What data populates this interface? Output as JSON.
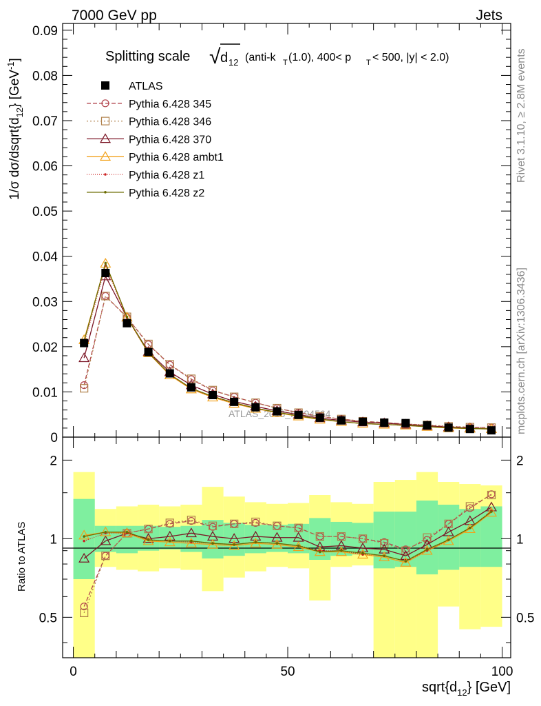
{
  "header": {
    "left": "7000 GeV pp",
    "right": "Jets",
    "side_top": "Rivet 3.1.10, ≥ 2.8M events",
    "side_bottom": "mcplots.cern.ch [arXiv:1306.3436]",
    "watermark": "ATLAS_2013_I1094564"
  },
  "title": {
    "main": "Splitting scale",
    "sqrt_symbol": "√",
    "var_base": "d",
    "var_sub": "12",
    "cond_1": "(anti-k",
    "cond_1_sub": "T",
    "cond_2": "(1.0), 400< p",
    "cond_2_sub": "T",
    "cond_3": "< 500, |y| < 2.0)"
  },
  "axes": {
    "ylabel_main": "1/σ dσ/dsqrt{d",
    "ylabel_main_sub": "12",
    "ylabel_main_end": "} [GeV",
    "ylabel_main_sup": "-1",
    "ylabel_main_close": "]",
    "ylabel_ratio": "Ratio to ATLAS",
    "xlabel": "sqrt{d",
    "xlabel_sub": "12",
    "xlabel_end": "} [GeV]"
  },
  "chart_data": {
    "type": "line",
    "x": [
      2.5,
      7.5,
      12.5,
      17.5,
      22.5,
      27.5,
      32.5,
      37.5,
      42.5,
      47.5,
      52.5,
      57.5,
      62.5,
      67.5,
      72.5,
      77.5,
      82.5,
      87.5,
      92.5,
      97.5
    ],
    "bin_edges": [
      0,
      5,
      10,
      15,
      20,
      25,
      30,
      35,
      40,
      45,
      50,
      55,
      60,
      65,
      70,
      75,
      80,
      85,
      90,
      95,
      100
    ],
    "xlim": [
      -2.5,
      102
    ],
    "ylim_main": [
      0,
      0.0915
    ],
    "ylim_ratio": [
      0.35,
      2.45
    ],
    "ratio_log_scale": true,
    "xticks": [
      0,
      50,
      100
    ],
    "yticks_main": [
      "0",
      "0.01",
      "0.02",
      "0.03",
      "0.04",
      "0.05",
      "0.06",
      "0.07",
      "0.08",
      "0.09"
    ],
    "yticks_ratio": [
      "0.5",
      "1",
      "2"
    ],
    "data": {
      "name": "ATLAS",
      "values": [
        0.0208,
        0.0363,
        0.0252,
        0.0188,
        0.0141,
        0.011,
        0.0093,
        0.0078,
        0.0066,
        0.0057,
        0.0049,
        0.0043,
        0.0037,
        0.0034,
        0.0032,
        0.0031,
        0.0026,
        0.0021,
        0.0018,
        0.0015
      ],
      "color": "#000000"
    },
    "band_inner": [
      [
        0.7,
        1.42
      ],
      [
        0.89,
        1.12
      ],
      [
        0.88,
        1.12
      ],
      [
        0.9,
        1.12
      ],
      [
        0.91,
        1.11
      ],
      [
        0.89,
        1.12
      ],
      [
        0.84,
        1.18
      ],
      [
        0.86,
        1.15
      ],
      [
        0.88,
        1.13
      ],
      [
        0.89,
        1.13
      ],
      [
        0.88,
        1.14
      ],
      [
        0.83,
        1.2
      ],
      [
        0.86,
        1.16
      ],
      [
        0.87,
        1.15
      ],
      [
        0.77,
        1.27
      ],
      [
        0.78,
        1.27
      ],
      [
        0.73,
        1.4
      ],
      [
        0.76,
        1.35
      ],
      [
        0.78,
        1.3
      ],
      [
        0.78,
        1.33
      ]
    ],
    "band_outer": [
      [
        0.35,
        1.8
      ],
      [
        0.78,
        1.3
      ],
      [
        0.76,
        1.33
      ],
      [
        0.75,
        1.35
      ],
      [
        0.77,
        1.33
      ],
      [
        0.76,
        1.35
      ],
      [
        0.63,
        1.58
      ],
      [
        0.71,
        1.45
      ],
      [
        0.75,
        1.38
      ],
      [
        0.78,
        1.36
      ],
      [
        0.77,
        1.37
      ],
      [
        0.58,
        1.47
      ],
      [
        0.78,
        1.38
      ],
      [
        0.79,
        1.36
      ],
      [
        0.35,
        1.65
      ],
      [
        0.35,
        1.68
      ],
      [
        0.35,
        1.8
      ],
      [
        0.55,
        1.65
      ],
      [
        0.45,
        1.62
      ],
      [
        0.46,
        1.6
      ]
    ],
    "band_colors": {
      "inner": "#7fef9f",
      "outer": "#ffff88"
    },
    "series": [
      {
        "name": "Pythia 6.428 345",
        "color": "#b2444d",
        "dash": "6,3",
        "marker": "circle-open",
        "values": [
          0.0115,
          0.0312,
          0.0265,
          0.0205,
          0.016,
          0.0128,
          0.0103,
          0.0089,
          0.0076,
          0.0064,
          0.0054,
          0.0046,
          0.004,
          0.0035,
          0.0032,
          0.0029,
          0.0026,
          0.0023,
          0.0022,
          0.0021
        ],
        "ratio": [
          0.55,
          0.86,
          1.05,
          1.09,
          1.14,
          1.17,
          1.11,
          1.14,
          1.15,
          1.12,
          1.1,
          1.02,
          1.02,
          1.0,
          0.97,
          0.91,
          0.99,
          1.14,
          1.31,
          1.48
        ]
      },
      {
        "name": "Pythia 6.428 346",
        "color": "#b0804a",
        "dash": "2,3",
        "marker": "square-open",
        "values": [
          0.0108,
          0.0312,
          0.0266,
          0.0206,
          0.0161,
          0.0129,
          0.0104,
          0.0089,
          0.0076,
          0.0064,
          0.0054,
          0.0046,
          0.004,
          0.0035,
          0.0032,
          0.0029,
          0.0027,
          0.0024,
          0.0022,
          0.0021
        ],
        "ratio": [
          0.52,
          0.86,
          1.05,
          1.09,
          1.15,
          1.18,
          1.12,
          1.14,
          1.16,
          1.12,
          1.1,
          1.02,
          1.02,
          1.0,
          0.96,
          0.9,
          1.01,
          1.14,
          1.33,
          1.47
        ]
      },
      {
        "name": "Pythia 6.428 370",
        "color": "#7a1424",
        "dash": "",
        "marker": "triangle-open",
        "values": [
          0.0175,
          0.0356,
          0.0265,
          0.0189,
          0.0144,
          0.0115,
          0.0095,
          0.0079,
          0.0068,
          0.0058,
          0.005,
          0.0042,
          0.0037,
          0.0033,
          0.0031,
          0.0028,
          0.0025,
          0.0022,
          0.002,
          0.0018
        ],
        "ratio": [
          0.84,
          0.98,
          1.05,
          1.0,
          1.02,
          1.05,
          1.02,
          1.0,
          1.02,
          1.01,
          1.01,
          0.93,
          0.94,
          0.92,
          0.91,
          0.86,
          0.95,
          1.06,
          1.17,
          1.32
        ]
      },
      {
        "name": "Pythia 6.428 ambt1",
        "color": "#f2a11a",
        "dash": "",
        "marker": "triangle-open",
        "values": [
          0.0215,
          0.0384,
          0.0265,
          0.0186,
          0.0137,
          0.0106,
          0.0088,
          0.0074,
          0.0063,
          0.0054,
          0.0046,
          0.0039,
          0.0034,
          0.003,
          0.0028,
          0.0026,
          0.0023,
          0.002,
          0.0019,
          0.0018
        ],
        "ratio": [
          1.03,
          1.06,
          1.05,
          0.98,
          0.97,
          0.96,
          0.95,
          0.94,
          0.96,
          0.95,
          0.93,
          0.89,
          0.89,
          0.87,
          0.85,
          0.81,
          0.9,
          0.98,
          1.09,
          1.26
        ]
      },
      {
        "name": "Pythia 6.428 z1",
        "color": "#cc2222",
        "dash": "1,2",
        "marker": "dot",
        "values": [
          0.0205,
          0.038,
          0.0264,
          0.0186,
          0.0138,
          0.0107,
          0.0089,
          0.0075,
          0.0064,
          0.0055,
          0.0047,
          0.004,
          0.0034,
          0.003,
          0.0028,
          0.0026,
          0.0023,
          0.0021,
          0.0019,
          0.0018
        ],
        "ratio": [
          0.98,
          1.05,
          1.05,
          0.99,
          0.98,
          0.97,
          0.96,
          0.95,
          0.97,
          0.96,
          0.94,
          0.9,
          0.9,
          0.87,
          0.86,
          0.82,
          0.9,
          0.99,
          1.1,
          1.28
        ]
      },
      {
        "name": "Pythia 6.428 z2",
        "color": "#6b6b00",
        "dash": "",
        "marker": "dot",
        "values": [
          0.0212,
          0.0385,
          0.0266,
          0.0187,
          0.0139,
          0.0108,
          0.009,
          0.0076,
          0.0064,
          0.0055,
          0.0047,
          0.004,
          0.0034,
          0.003,
          0.0028,
          0.0026,
          0.0023,
          0.0021,
          0.0019,
          0.0018
        ],
        "ratio": [
          1.02,
          1.06,
          1.06,
          0.99,
          0.98,
          0.98,
          0.96,
          0.95,
          0.97,
          0.96,
          0.94,
          0.89,
          0.9,
          0.88,
          0.86,
          0.82,
          0.91,
          0.99,
          1.1,
          1.27
        ]
      }
    ]
  }
}
